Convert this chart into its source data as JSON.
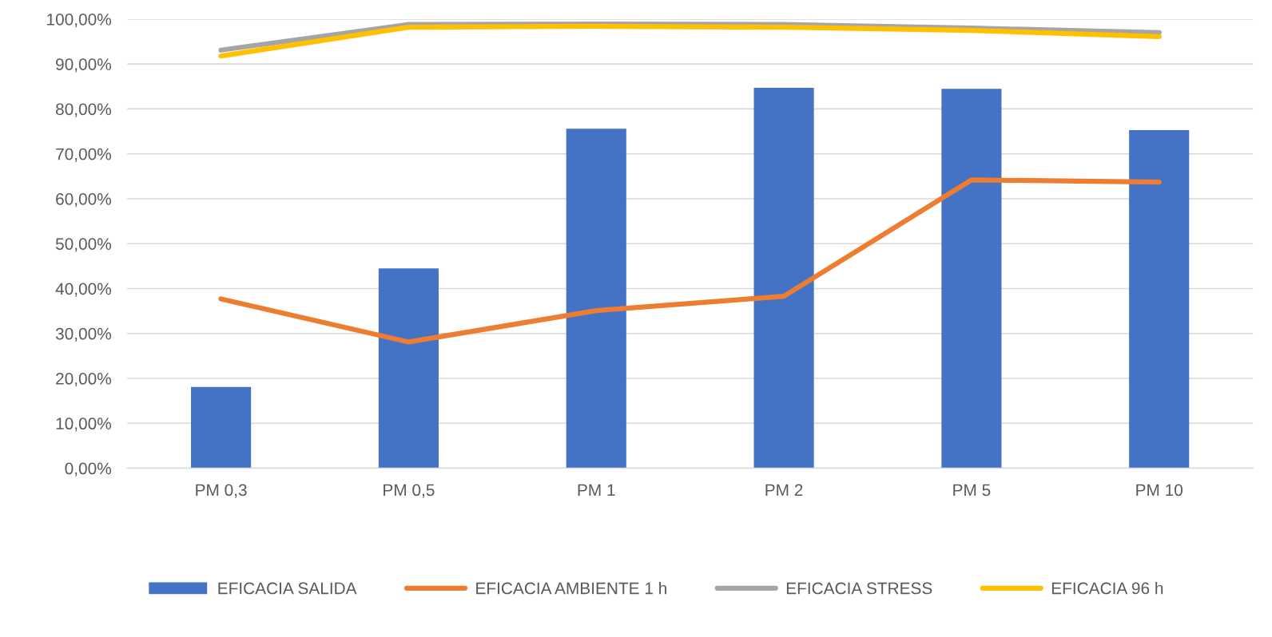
{
  "chart_data": {
    "type": "bar",
    "categories": [
      "PM 0,3",
      "PM 0,5",
      "PM 1",
      "PM 2",
      "PM 5",
      "PM 10"
    ],
    "series": [
      {
        "name": "EFICACIA SALIDA",
        "color": "#4472c4",
        "values": [
          18.1,
          44.5,
          75.6,
          84.7,
          84.5,
          75.3
        ]
      },
      {
        "name": "EFICACIA AMBIENTE 1 h",
        "type": "line",
        "color": "#ed7d31",
        "values": [
          37.7,
          28.1,
          35.1,
          38.3,
          64.2,
          63.7
        ]
      },
      {
        "name": "EFICACIA STRESS",
        "type": "line",
        "color": "#a5a5a5",
        "values": [
          93.1,
          98.8,
          98.9,
          98.8,
          98.0,
          97.0
        ]
      },
      {
        "name": "EFICACIA 96 h",
        "type": "line",
        "color": "#ffc000",
        "values": [
          91.8,
          98.2,
          98.4,
          98.2,
          97.5,
          96.1
        ]
      }
    ],
    "ylim": [
      0,
      100
    ],
    "yticks": [
      {
        "value": 0,
        "label": "0,00%"
      },
      {
        "value": 10,
        "label": "10,00%"
      },
      {
        "value": 20,
        "label": "20,00%"
      },
      {
        "value": 30,
        "label": "30,00%"
      },
      {
        "value": 40,
        "label": "40,00%"
      },
      {
        "value": 50,
        "label": "50,00%"
      },
      {
        "value": 60,
        "label": "60,00%"
      },
      {
        "value": 70,
        "label": "70,00%"
      },
      {
        "value": 80,
        "label": "80,00%"
      },
      {
        "value": 90,
        "label": "90,00%"
      },
      {
        "value": 100,
        "label": "100,00%"
      }
    ],
    "grid": "y",
    "legend": "bottom",
    "marker": "none",
    "line_style": "solid"
  }
}
